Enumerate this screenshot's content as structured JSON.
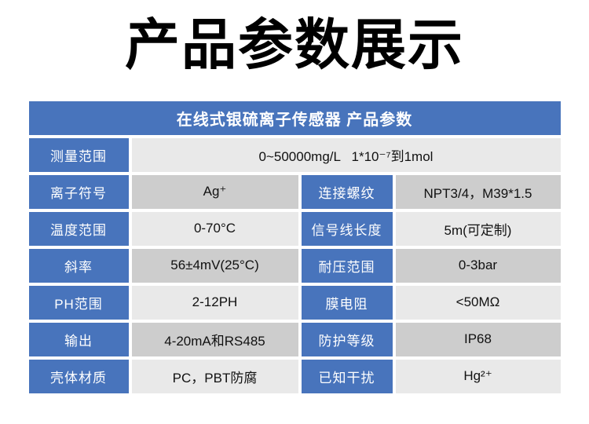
{
  "title": "产品参数展示",
  "colors": {
    "blue": "#4874bc",
    "row_light": "#e9e9e9",
    "row_dark": "#cdcdcd",
    "header_text": "#ffffff",
    "value_text": "#111111"
  },
  "table": {
    "header": "在线式银硫离子传感器 产品参数",
    "rows": [
      {
        "cells": [
          {
            "kind": "label",
            "text": "测量范围"
          },
          {
            "kind": "value",
            "text": "0~50000mg/L   1*10⁻⁷到1mol",
            "span": 3
          }
        ]
      },
      {
        "cells": [
          {
            "kind": "label",
            "text": "离子符号"
          },
          {
            "kind": "value",
            "text": "Ag⁺"
          },
          {
            "kind": "label",
            "text": "连接螺纹"
          },
          {
            "kind": "value",
            "text": "NPT3/4，M39*1.5"
          }
        ]
      },
      {
        "cells": [
          {
            "kind": "label",
            "text": "温度范围"
          },
          {
            "kind": "value",
            "text": "0-70°C"
          },
          {
            "kind": "label",
            "text": "信号线长度"
          },
          {
            "kind": "value",
            "text": "5m(可定制)"
          }
        ]
      },
      {
        "cells": [
          {
            "kind": "label",
            "text": "斜率"
          },
          {
            "kind": "value",
            "text": "56±4mV(25°C)"
          },
          {
            "kind": "label",
            "text": "耐压范围"
          },
          {
            "kind": "value",
            "text": "0-3bar"
          }
        ]
      },
      {
        "cells": [
          {
            "kind": "label",
            "text": "PH范围"
          },
          {
            "kind": "value",
            "text": "2-12PH"
          },
          {
            "kind": "label",
            "text": "膜电阻"
          },
          {
            "kind": "value",
            "text": "<50MΩ"
          }
        ]
      },
      {
        "cells": [
          {
            "kind": "label",
            "text": "输出"
          },
          {
            "kind": "value",
            "text": "4-20mA和RS485"
          },
          {
            "kind": "label",
            "text": "防护等级"
          },
          {
            "kind": "value",
            "text": "IP68"
          }
        ]
      },
      {
        "cells": [
          {
            "kind": "label",
            "text": "壳体材质"
          },
          {
            "kind": "value",
            "text": "PC，PBT防腐"
          },
          {
            "kind": "label",
            "text": "已知干扰"
          },
          {
            "kind": "value",
            "text": "Hg²⁺"
          }
        ]
      }
    ]
  }
}
